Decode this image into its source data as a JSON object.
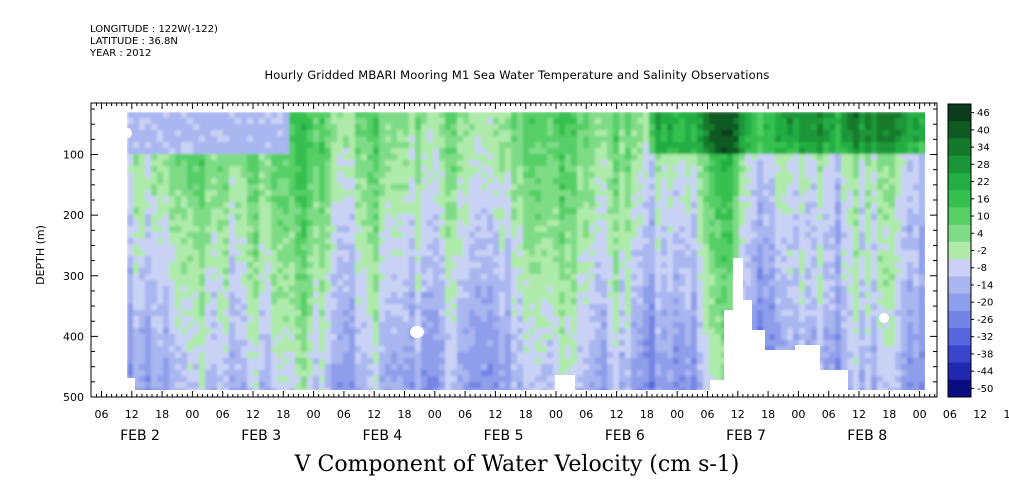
{
  "header": {
    "longitude": "LONGITUDE : 122W(-122)",
    "latitude": "LATITUDE : 36.8N",
    "year": "YEAR : 2012"
  },
  "chart_data": {
    "type": "heatmap",
    "title": "Hourly Gridded MBARI Mooring M1 Sea Water Temperature and Salinity Observations",
    "xlabel": "V Component of Water Velocity (cm s-1)",
    "ylabel": "DEPTH (m)",
    "ylim": [
      0,
      500
    ],
    "y_reversed": true,
    "yticks": [
      100,
      200,
      300,
      400,
      500
    ],
    "ytick_labels": [
      "100",
      "200",
      "300",
      "400",
      "500"
    ],
    "x_hour_ticks": [
      "06",
      "12",
      "18",
      "00",
      "06",
      "12",
      "18",
      "00",
      "06",
      "12",
      "18",
      "00",
      "06",
      "12",
      "18",
      "00",
      "06",
      "12",
      "18",
      "00",
      "06",
      "12",
      "18",
      "00",
      "06",
      "12",
      "18",
      "00",
      "06",
      "12",
      "18",
      "00"
    ],
    "x_day_labels": [
      "FEB  2",
      "FEB  3",
      "FEB  4",
      "FEB  5",
      "FEB  6",
      "FEB  7",
      "FEB  8"
    ],
    "colorbar": {
      "labels": [
        "46",
        "40",
        "34",
        "28",
        "22",
        "16",
        "10",
        "4",
        "-2",
        "-8",
        "-14",
        "-20",
        "-26",
        "-32",
        "-38",
        "-44",
        "-50"
      ],
      "colors": [
        "#0b3d1a",
        "#0e5a22",
        "#137a2c",
        "#1a9637",
        "#23ad43",
        "#35c050",
        "#55cf66",
        "#7fdc86",
        "#aeeaa9",
        "#c9d2f5",
        "#a9b6f0",
        "#8f9eea",
        "#7484e4",
        "#5766dc",
        "#3946cc",
        "#2028b0",
        "#0a0d80"
      ]
    },
    "summary": "Mostly positive (green) northward velocities in upper 250 m, negative (blue/lavender) at depth; strongest positive values near the surface on Feb 6-8."
  }
}
